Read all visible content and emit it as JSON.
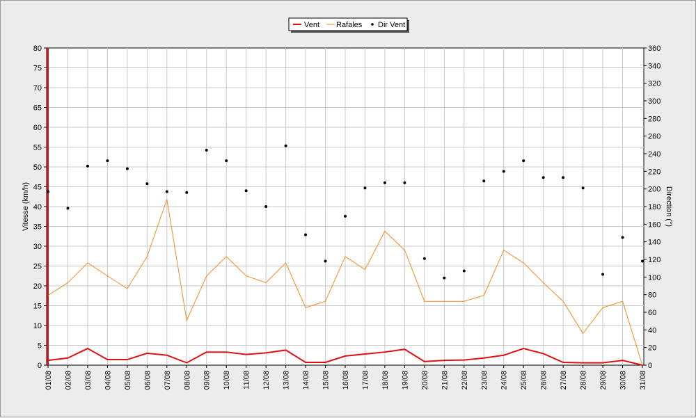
{
  "colors": {
    "background": "#ececec",
    "plot_background": "#ffffff",
    "grid": "#c8c8c8",
    "vent": "#e01010",
    "rafales": "#f08c1e",
    "dir": "#000000",
    "first_bar": "#c0181e"
  },
  "chart_data": {
    "type": "line",
    "categories": [
      "01/08",
      "02/08",
      "03/08",
      "04/08",
      "05/08",
      "06/08",
      "07/08",
      "08/08",
      "09/08",
      "10/08",
      "11/08",
      "12/08",
      "13/08",
      "14/08",
      "15/08",
      "16/08",
      "17/08",
      "18/08",
      "19/08",
      "20/08",
      "21/08",
      "22/08",
      "23/08",
      "24/08",
      "25/08",
      "26/08",
      "27/08",
      "28/08",
      "29/08",
      "30/08",
      "31/08"
    ],
    "legend": [
      "Vent",
      "Rafales",
      "Dir Vent"
    ],
    "legend_position": "top-center",
    "grid": true,
    "ylabel_left": "Vitesse (km/h)",
    "ylabel_right": "Direction (°)",
    "ylim_left": [
      0,
      80
    ],
    "ylim_right": [
      0,
      360
    ],
    "yticks_left": [
      "0",
      "5",
      "10",
      "15",
      "20",
      "25",
      "30",
      "35",
      "40",
      "45",
      "50",
      "55",
      "60",
      "65",
      "70",
      "75",
      "80"
    ],
    "yticks_right": [
      "0",
      "20",
      "40",
      "60",
      "80",
      "100",
      "120",
      "140",
      "160",
      "180",
      "200",
      "220",
      "240",
      "260",
      "280",
      "300",
      "320",
      "340",
      "360"
    ],
    "series": [
      {
        "name": "Vent",
        "axis": "left",
        "style": "line",
        "values": [
          1.2,
          1.8,
          4.2,
          1.4,
          1.4,
          3.0,
          2.5,
          0.6,
          3.3,
          3.3,
          2.7,
          3.1,
          3.8,
          0.7,
          0.7,
          2.3,
          2.8,
          3.3,
          4.0,
          0.9,
          1.2,
          1.3,
          1.8,
          2.5,
          4.2,
          2.9,
          0.7,
          0.6,
          0.6,
          1.2,
          0.0
        ]
      },
      {
        "name": "Rafales",
        "axis": "left",
        "style": "line",
        "values": [
          17.6,
          20.8,
          25.8,
          22.5,
          19.3,
          27.4,
          41.8,
          11.3,
          22.5,
          27.4,
          22.5,
          20.8,
          25.8,
          14.5,
          16.1,
          27.4,
          24.1,
          33.8,
          29.0,
          16.1,
          16.1,
          16.1,
          17.6,
          29.0,
          25.8,
          20.8,
          16.1,
          8.0,
          14.5,
          16.1,
          0.0
        ]
      },
      {
        "name": "Dir Vent",
        "axis": "right",
        "style": "points",
        "values": [
          197,
          178,
          226,
          232,
          223,
          206,
          197,
          196,
          244,
          232,
          198,
          180,
          249,
          148,
          118,
          169,
          201,
          207,
          207,
          121,
          99,
          107,
          209,
          220,
          232,
          213,
          213,
          201,
          null,
          145,
          118
        ],
        "extra_points": [
          {
            "x": 28.0,
            "y": 103
          }
        ]
      }
    ]
  }
}
